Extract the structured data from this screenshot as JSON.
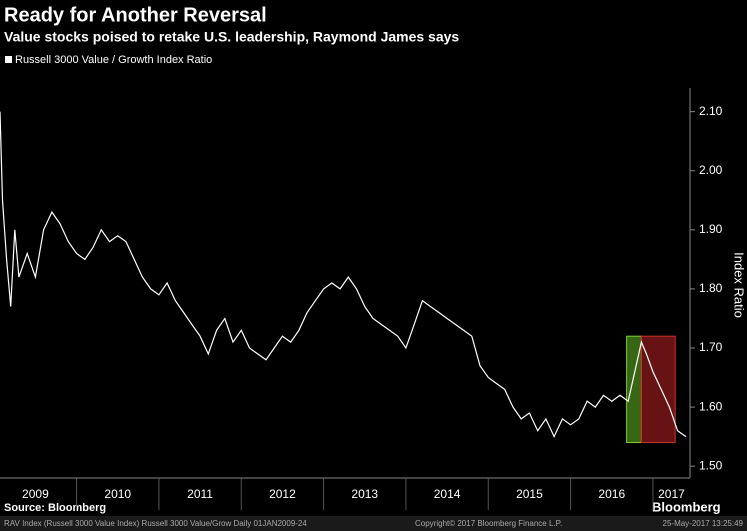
{
  "chart_data": {
    "type": "line",
    "title": "Ready for Another Reversal",
    "subtitle": "Value stocks poised to retake U.S. leadership, Raymond James says",
    "legend": "Russell 3000 Value / Growth Index Ratio",
    "y_label": "Index Ratio",
    "source": "Source: Bloomberg",
    "brand": "Bloomberg",
    "footer_left": "RAV Index (Russell 3000 Value Index) Russell 3000 Value/Grow  Daily 01JAN2009-24",
    "footer_mid": "Copyright© 2017 Bloomberg Finance L.P.",
    "footer_right": "25-May-2017 13:25:49",
    "color": "#ffffff",
    "x": [
      2009.07,
      2009.1,
      2009.15,
      2009.2,
      2009.25,
      2009.3,
      2009.4,
      2009.5,
      2009.6,
      2009.7,
      2009.8,
      2009.9,
      2010.0,
      2010.1,
      2010.2,
      2010.3,
      2010.4,
      2010.5,
      2010.6,
      2010.7,
      2010.8,
      2010.9,
      2011.0,
      2011.1,
      2011.2,
      2011.3,
      2011.4,
      2011.5,
      2011.6,
      2011.7,
      2011.8,
      2011.9,
      2012.0,
      2012.1,
      2012.2,
      2012.3,
      2012.4,
      2012.5,
      2012.6,
      2012.7,
      2012.8,
      2012.9,
      2013.0,
      2013.1,
      2013.2,
      2013.3,
      2013.4,
      2013.5,
      2013.6,
      2013.7,
      2013.8,
      2013.9,
      2014.0,
      2014.1,
      2014.2,
      2014.3,
      2014.4,
      2014.5,
      2014.6,
      2014.7,
      2014.8,
      2014.9,
      2015.0,
      2015.1,
      2015.2,
      2015.3,
      2015.4,
      2015.5,
      2015.6,
      2015.7,
      2015.8,
      2015.9,
      2016.0,
      2016.1,
      2016.2,
      2016.3,
      2016.4,
      2016.5,
      2016.6,
      2016.7,
      2016.78,
      2016.86,
      2016.92,
      2017.0,
      2017.1,
      2017.2,
      2017.3,
      2017.4
    ],
    "values": [
      2.1,
      1.95,
      1.85,
      1.77,
      1.9,
      1.82,
      1.86,
      1.82,
      1.9,
      1.93,
      1.91,
      1.88,
      1.86,
      1.85,
      1.87,
      1.9,
      1.88,
      1.89,
      1.88,
      1.85,
      1.82,
      1.8,
      1.79,
      1.81,
      1.78,
      1.76,
      1.74,
      1.72,
      1.69,
      1.73,
      1.75,
      1.71,
      1.73,
      1.7,
      1.69,
      1.68,
      1.7,
      1.72,
      1.71,
      1.73,
      1.76,
      1.78,
      1.8,
      1.81,
      1.8,
      1.82,
      1.8,
      1.77,
      1.75,
      1.74,
      1.73,
      1.72,
      1.7,
      1.74,
      1.78,
      1.77,
      1.76,
      1.75,
      1.74,
      1.73,
      1.72,
      1.67,
      1.65,
      1.64,
      1.63,
      1.6,
      1.58,
      1.59,
      1.56,
      1.58,
      1.55,
      1.58,
      1.57,
      1.58,
      1.61,
      1.6,
      1.62,
      1.61,
      1.62,
      1.61,
      1.66,
      1.71,
      1.69,
      1.66,
      1.63,
      1.6,
      1.56,
      1.55
    ],
    "highlights": [
      {
        "x": [
          2016.68,
          2016.86
        ],
        "y": [
          1.54,
          1.72
        ],
        "color": "#4a8a1c"
      },
      {
        "x": [
          2016.86,
          2017.27
        ],
        "y": [
          1.54,
          1.72
        ],
        "color": "#8b1a1a"
      }
    ],
    "xlim": [
      2009.07,
      2017.45
    ],
    "xticks": [
      {
        "value": 2009,
        "label": "2009"
      },
      {
        "value": 2010,
        "label": "2010"
      },
      {
        "value": 2011,
        "label": "2011"
      },
      {
        "value": 2012,
        "label": "2012"
      },
      {
        "value": 2013,
        "label": "2013"
      },
      {
        "value": 2014,
        "label": "2014"
      },
      {
        "value": 2015,
        "label": "2015"
      },
      {
        "value": 2016,
        "label": "2016"
      },
      {
        "value": 2017,
        "label": "2017"
      }
    ],
    "ylim": [
      1.48,
      2.14
    ],
    "yticks": [
      {
        "value": 1.5,
        "label": "1.50"
      },
      {
        "value": 1.6,
        "label": "1.60"
      },
      {
        "value": 1.7,
        "label": "1.70"
      },
      {
        "value": 1.8,
        "label": "1.80"
      },
      {
        "value": 1.9,
        "label": "1.90"
      },
      {
        "value": 2.0,
        "label": "2.00"
      },
      {
        "value": 2.1,
        "label": "2.10"
      }
    ]
  }
}
